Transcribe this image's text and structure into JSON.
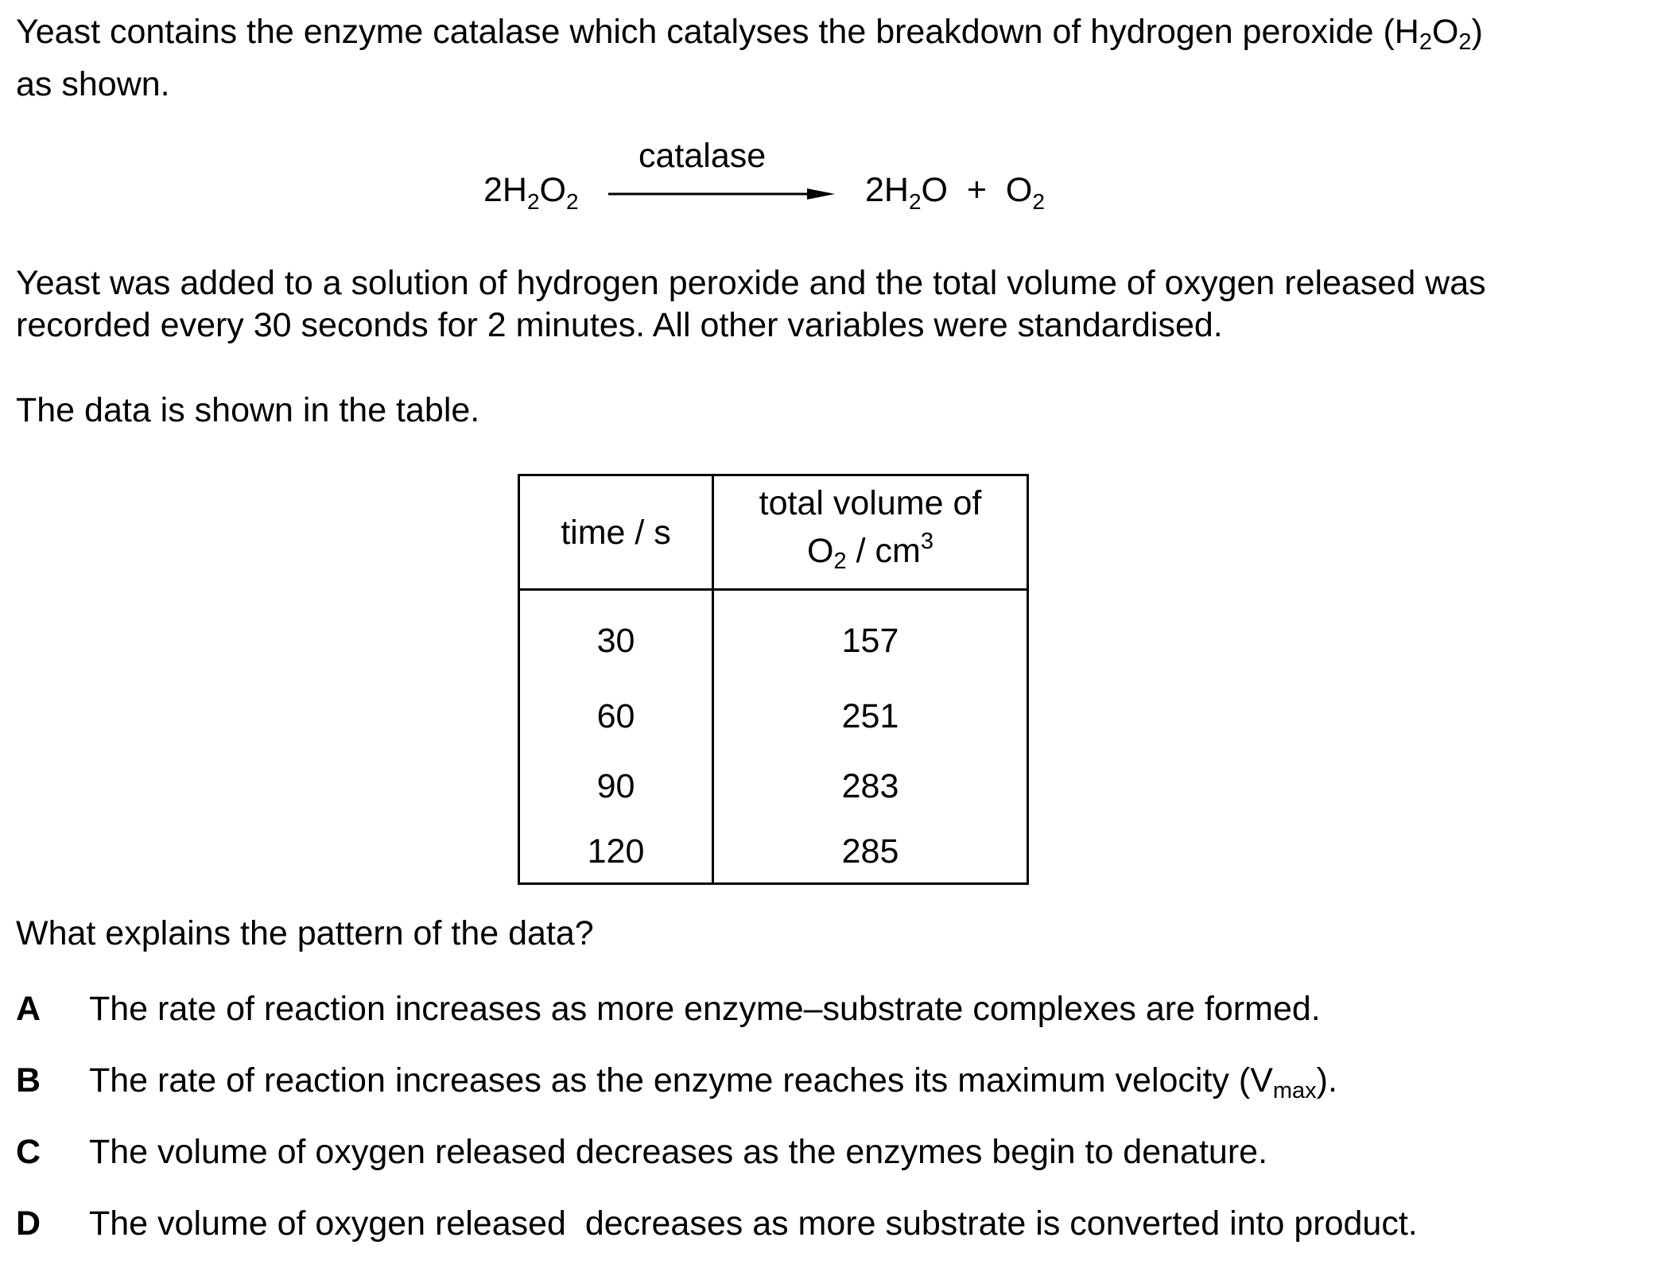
{
  "intro": {
    "line1_pre": "Yeast contains the enzyme catalase which catalyses the breakdown of hydrogen peroxide (H",
    "sub_a": "2",
    "mid": "O",
    "sub_b": "2",
    "line1_post": ")",
    "line2": "as shown."
  },
  "equation": {
    "left_coef": "2H",
    "left_sub1": "2",
    "left_o": "O",
    "left_sub2": "2",
    "catalyst": "catalase",
    "right_coef": "2H",
    "right_sub1": "2",
    "right_rest": "O  +  O",
    "right_sub2": "2"
  },
  "paragraph2": {
    "line1": "Yeast was added to a solution of hydrogen peroxide and the total volume of oxygen released was",
    "line2": "recorded every 30 seconds for 2 minutes. All other variables were standardised."
  },
  "paragraph3": "The data is shown in the table.",
  "table": {
    "header_time": "time / s",
    "header_vol_line1": "total volume of",
    "header_vol_o": "O",
    "header_vol_sub": "2",
    "header_vol_unit": " / cm",
    "header_vol_sup": "3",
    "rows": [
      {
        "time": "30",
        "volume": "157"
      },
      {
        "time": "60",
        "volume": "251"
      },
      {
        "time": "90",
        "volume": "283"
      },
      {
        "time": "120",
        "volume": "285"
      }
    ]
  },
  "question": "What explains the pattern of the data?",
  "options": [
    {
      "letter": "A",
      "text": "The rate of reaction increases as more enzyme–substrate complexes are formed."
    },
    {
      "letter": "B",
      "text": "The rate of reaction increases as the enzyme reaches its maximum velocity (V",
      "sub": "max",
      "tail": ")."
    },
    {
      "letter": "C",
      "text": "The volume of oxygen released decreases as the enzymes begin to denature."
    },
    {
      "letter": "D",
      "text": "The volume of oxygen released  decreases as more substrate is converted into product."
    }
  ]
}
